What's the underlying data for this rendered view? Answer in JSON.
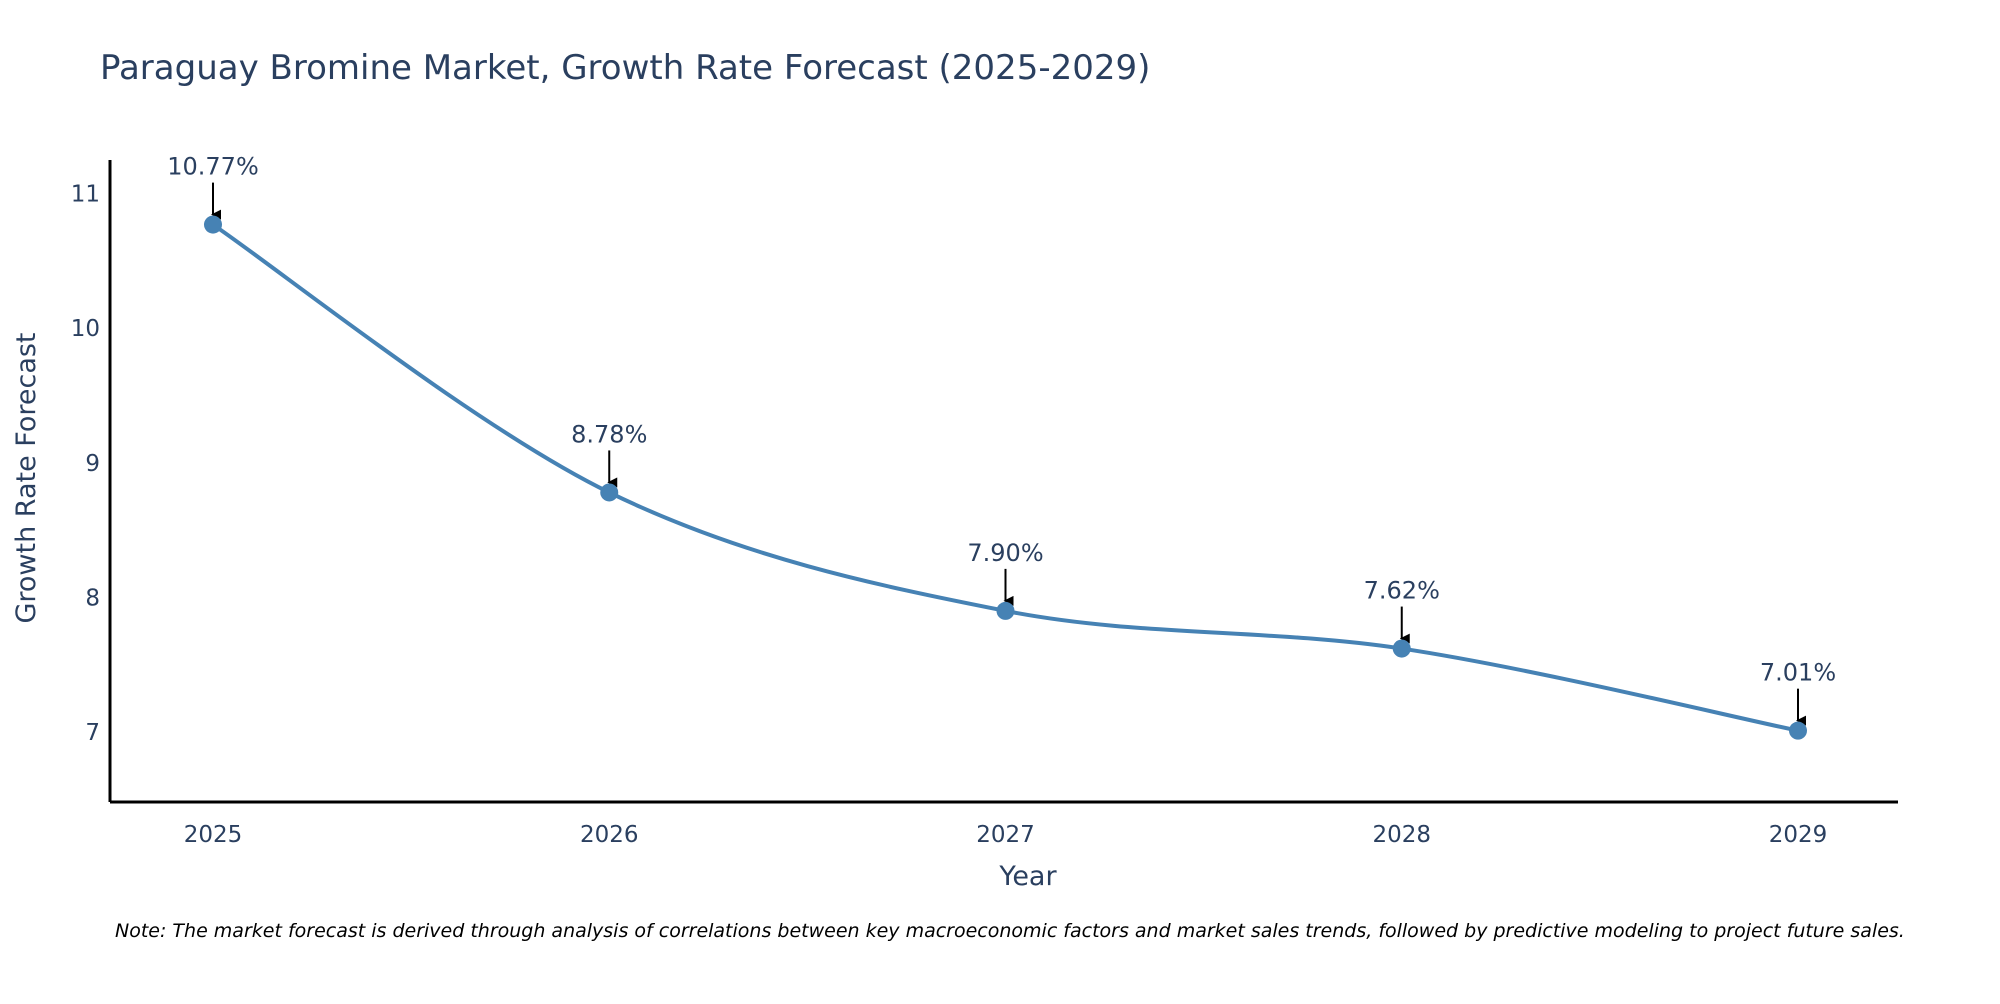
{
  "chart_data": {
    "type": "line",
    "title": "Paraguay Bromine Market, Growth Rate Forecast (2025-2029)",
    "xlabel": "Year",
    "ylabel": "Growth Rate Forecast",
    "categories": [
      "2025",
      "2026",
      "2027",
      "2028",
      "2029"
    ],
    "series": [
      {
        "name": "Growth Rate Forecast",
        "values": [
          10.77,
          8.78,
          7.9,
          7.62,
          7.01
        ],
        "labels": [
          "10.77%",
          "8.78%",
          "7.90%",
          "7.62%",
          "7.01%"
        ],
        "color": "#4682b4"
      }
    ],
    "yticks": [
      7,
      8,
      9,
      10,
      11
    ],
    "ylim": [
      6.48,
      11.25
    ],
    "grid": false,
    "legend": "none"
  },
  "note": "Note: The market forecast is derived through analysis of correlations between key macroeconomic factors and market sales trends, followed by predictive modeling to project future sales."
}
